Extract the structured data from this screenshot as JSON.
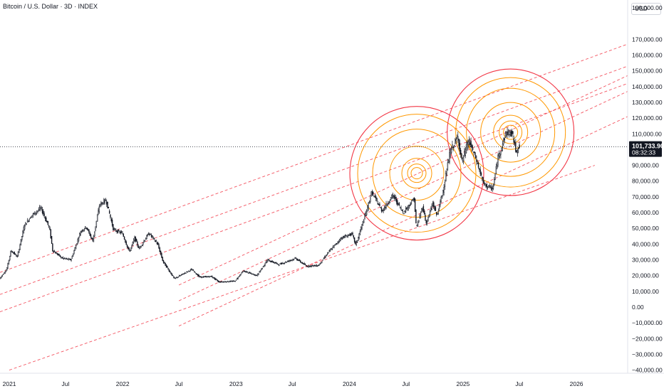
{
  "header": {
    "title": "Bitcoin / U.S. Dollar · 3D · INDEX",
    "currency": "USD"
  },
  "colors": {
    "candle": "#131722",
    "channel": "#f23645",
    "circle_outer": "#f23645",
    "circle_inner": "#ff9800",
    "price_line": "#131722",
    "price_tag": "#131722"
  },
  "chart_data": {
    "type": "candlestick",
    "series_name": "",
    "y_unit": "USD",
    "ylim": [
      -42000,
      195000
    ],
    "y_ticks": [
      190000,
      170000,
      160000,
      150000,
      140000,
      130000,
      120000,
      110000,
      90000,
      80000,
      70000,
      60000,
      50000,
      40000,
      30000,
      20000,
      10000,
      0,
      -10000,
      -20000,
      -30000,
      -40000
    ],
    "y_tick_labels": [
      "190,000.00",
      "170,000.00",
      "160,000.00",
      "150,000.00",
      "140,000.00",
      "130,000.00",
      "120,000.00",
      "110,000.00",
      "90,000.00",
      "80,000.00",
      "70,000.00",
      "60,000.00",
      "50,000.00",
      "40,000.00",
      "30,000.00",
      "20,000.00",
      "10,000.00",
      "0.00",
      "−10,000.00",
      "−20,000.00",
      "−30,000.00",
      "−40,000.00"
    ],
    "xlim": [
      "2020-12-02",
      "2026-06-15"
    ],
    "x_ticks": [
      "2021-01-01",
      "2021-07-01",
      "2022-01-01",
      "2022-07-01",
      "2023-01-01",
      "2023-07-01",
      "2024-01-01",
      "2024-07-01",
      "2025-01-01",
      "2025-07-01",
      "2026-01-01"
    ],
    "x_tick_labels": [
      "2021",
      "Jul",
      "2022",
      "Jul",
      "2023",
      "Jul",
      "2024",
      "Jul",
      "2025",
      "Jul",
      "2026"
    ],
    "current_price": 101733.9,
    "current_price_label": "101,733.90",
    "countdown_label": "08:32:33",
    "grid": true,
    "price_path": [
      [
        "2020-12-02",
        18000
      ],
      [
        "2020-12-25",
        24000
      ],
      [
        "2021-01-08",
        36000
      ],
      [
        "2021-01-28",
        32000
      ],
      [
        "2021-02-20",
        52000
      ],
      [
        "2021-03-15",
        58000
      ],
      [
        "2021-04-14",
        63000
      ],
      [
        "2021-05-12",
        50000
      ],
      [
        "2021-05-22",
        36000
      ],
      [
        "2021-06-22",
        31000
      ],
      [
        "2021-07-20",
        30000
      ],
      [
        "2021-08-20",
        48000
      ],
      [
        "2021-09-07",
        51000
      ],
      [
        "2021-09-28",
        42000
      ],
      [
        "2021-10-20",
        65000
      ],
      [
        "2021-11-10",
        68000
      ],
      [
        "2021-12-04",
        49000
      ],
      [
        "2022-01-01",
        47000
      ],
      [
        "2022-01-24",
        35000
      ],
      [
        "2022-02-10",
        44000
      ],
      [
        "2022-02-24",
        37000
      ],
      [
        "2022-03-28",
        47000
      ],
      [
        "2022-04-25",
        40000
      ],
      [
        "2022-05-12",
        29000
      ],
      [
        "2022-06-18",
        18000
      ],
      [
        "2022-07-15",
        21000
      ],
      [
        "2022-08-13",
        24000
      ],
      [
        "2022-09-07",
        19000
      ],
      [
        "2022-10-15",
        19500
      ],
      [
        "2022-11-08",
        16000
      ],
      [
        "2022-12-30",
        16500
      ],
      [
        "2023-01-25",
        23000
      ],
      [
        "2023-03-10",
        20000
      ],
      [
        "2023-04-14",
        30000
      ],
      [
        "2023-05-20",
        27000
      ],
      [
        "2023-07-13",
        31000
      ],
      [
        "2023-08-17",
        26000
      ],
      [
        "2023-09-25",
        26500
      ],
      [
        "2023-10-25",
        34500
      ],
      [
        "2023-12-08",
        44000
      ],
      [
        "2024-01-11",
        46500
      ],
      [
        "2024-01-23",
        39500
      ],
      [
        "2024-02-28",
        62000
      ],
      [
        "2024-03-14",
        73000
      ],
      [
        "2024-04-17",
        61000
      ],
      [
        "2024-05-21",
        71000
      ],
      [
        "2024-06-24",
        60000
      ],
      [
        "2024-07-29",
        69000
      ],
      [
        "2024-08-05",
        50000
      ],
      [
        "2024-08-25",
        64000
      ],
      [
        "2024-09-06",
        53000
      ],
      [
        "2024-09-27",
        66000
      ],
      [
        "2024-10-10",
        58000
      ],
      [
        "2024-10-29",
        73000
      ],
      [
        "2024-11-22",
        99000
      ],
      [
        "2024-12-17",
        108000
      ],
      [
        "2024-12-30",
        92000
      ],
      [
        "2025-01-20",
        106000
      ],
      [
        "2025-02-10",
        96000
      ],
      [
        "2025-03-10",
        78000
      ],
      [
        "2025-04-08",
        75000
      ],
      [
        "2025-04-25",
        95000
      ],
      [
        "2025-05-22",
        111000
      ],
      [
        "2025-06-10",
        110000
      ],
      [
        "2025-06-22",
        99000
      ],
      [
        "2025-06-30",
        101733.9
      ]
    ],
    "channel_lines": [
      {
        "start": [
          "2020-12-02",
          22000
        ],
        "end": [
          "2026-06-15",
          167000
        ]
      },
      {
        "start": [
          "2020-12-02",
          8000
        ],
        "end": [
          "2026-06-15",
          153000
        ]
      },
      {
        "start": [
          "2020-12-02",
          -3000
        ],
        "end": [
          "2026-06-15",
          142000
        ]
      },
      {
        "start": [
          "2022-07-01",
          14000
        ],
        "end": [
          "2026-06-15",
          147000
        ]
      },
      {
        "start": [
          "2022-07-01",
          4000
        ],
        "end": [
          "2026-06-15",
          137000
        ]
      },
      {
        "start": [
          "2022-07-01",
          -12000
        ],
        "end": [
          "2026-06-15",
          121000
        ]
      },
      {
        "start": [
          "2021-01-01",
          -40000
        ],
        "end": [
          "2026-03-01",
          90000
        ]
      }
    ],
    "circle_groups": [
      {
        "center": [
          "2024-08-05",
          85000
        ],
        "outer_color": "#f23645",
        "ring_count": 6
      },
      {
        "center": [
          "2025-06-03",
          111000
        ],
        "outer_color": "#f23645",
        "ring_count": 6
      }
    ]
  }
}
